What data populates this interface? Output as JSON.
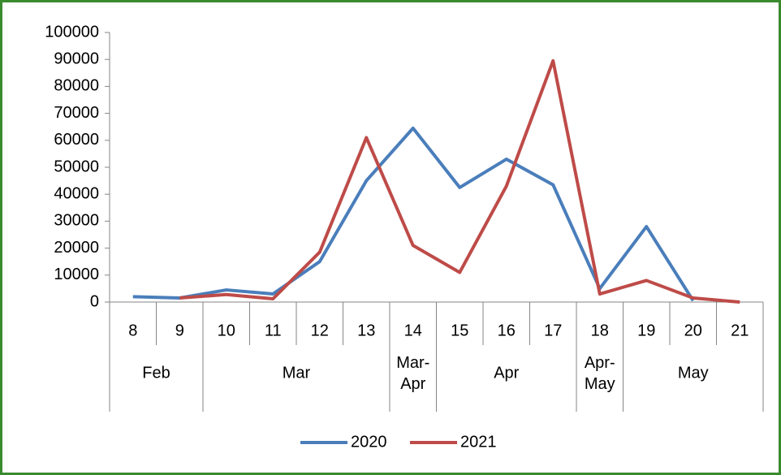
{
  "chart_data": {
    "type": "line",
    "categories": [
      "8",
      "9",
      "10",
      "11",
      "12",
      "13",
      "14",
      "15",
      "16",
      "17",
      "18",
      "19",
      "20",
      "21"
    ],
    "category_groups": [
      "Feb",
      "Feb",
      "Mar",
      "Mar",
      "Mar",
      "Mar",
      "Mar-Apr",
      "Apr",
      "Apr",
      "Apr",
      "Apr-May",
      "May",
      "May",
      "May"
    ],
    "series": [
      {
        "name": "2020",
        "color": "#4a7ebb",
        "values": [
          2000,
          1500,
          4500,
          3000,
          15000,
          45000,
          64500,
          42500,
          53000,
          43500,
          5000,
          28000,
          500,
          null
        ]
      },
      {
        "name": "2021",
        "color": "#be4b48",
        "values": [
          null,
          1500,
          2800,
          1200,
          18500,
          61000,
          21000,
          11000,
          43000,
          89500,
          3000,
          8000,
          1500,
          0
        ]
      }
    ],
    "ylim": [
      0,
      100000
    ],
    "yticks": [
      0,
      10000,
      20000,
      30000,
      40000,
      50000,
      60000,
      70000,
      80000,
      90000,
      100000
    ],
    "legend": "bottom"
  }
}
